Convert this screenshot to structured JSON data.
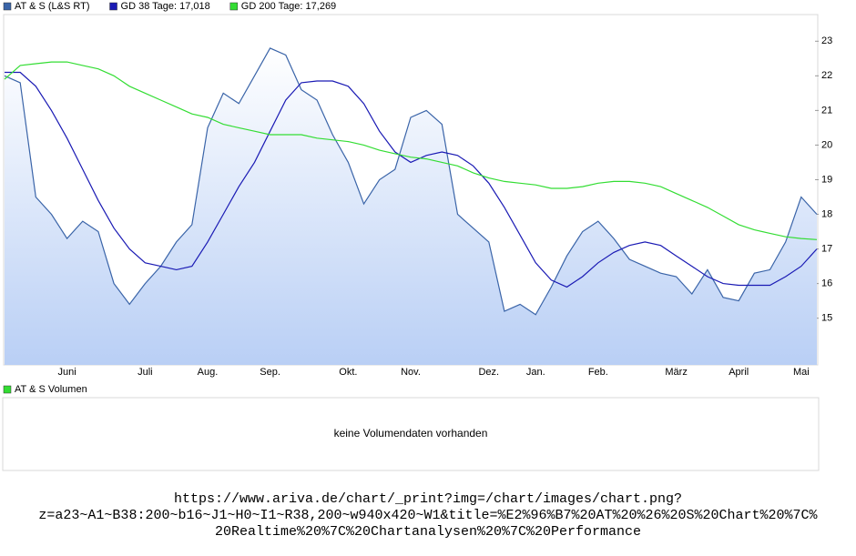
{
  "chart_data": {
    "type": "line",
    "categories": [
      null,
      null,
      null,
      null,
      "Juni",
      null,
      null,
      null,
      null,
      "Juli",
      null,
      null,
      null,
      "Aug.",
      null,
      null,
      null,
      "Sep.",
      null,
      null,
      null,
      null,
      "Okt.",
      null,
      null,
      null,
      "Nov.",
      null,
      null,
      null,
      null,
      "Dez.",
      null,
      null,
      "Jan.",
      null,
      null,
      null,
      "Feb.",
      null,
      null,
      null,
      null,
      "März",
      null,
      null,
      null,
      "April",
      null,
      null,
      null,
      "Mai",
      null
    ],
    "series": [
      {
        "name": "AT & S (L&S RT)",
        "color": "#3a64a8",
        "area": true,
        "values": [
          22.0,
          21.8,
          18.5,
          18.0,
          17.3,
          17.8,
          17.5,
          16.0,
          15.4,
          16.0,
          16.5,
          17.2,
          17.7,
          20.5,
          21.5,
          21.2,
          22.0,
          22.8,
          22.6,
          21.6,
          21.3,
          20.3,
          19.5,
          18.3,
          19.0,
          19.3,
          20.8,
          21.0,
          20.6,
          18.0,
          17.6,
          17.2,
          15.2,
          15.4,
          15.1,
          15.9,
          16.8,
          17.5,
          17.8,
          17.3,
          16.7,
          16.5,
          16.3,
          16.2,
          15.7,
          16.4,
          15.6,
          15.5,
          16.3,
          16.4,
          17.2,
          18.5,
          18.0
        ]
      },
      {
        "name": "GD 38 Tage: 17,018",
        "color": "#1a1ab4",
        "values": [
          22.1,
          22.1,
          21.7,
          21.0,
          20.2,
          19.3,
          18.4,
          17.6,
          17.0,
          16.6,
          16.5,
          16.4,
          16.5,
          17.2,
          18.0,
          18.8,
          19.5,
          20.4,
          21.3,
          21.8,
          21.85,
          21.85,
          21.7,
          21.2,
          20.4,
          19.8,
          19.5,
          19.7,
          19.8,
          19.7,
          19.4,
          18.9,
          18.2,
          17.4,
          16.6,
          16.1,
          15.9,
          16.2,
          16.6,
          16.9,
          17.1,
          17.2,
          17.1,
          16.8,
          16.5,
          16.2,
          16.0,
          15.95,
          15.95,
          15.95,
          16.2,
          16.5,
          17.0
        ]
      },
      {
        "name": "GD 200 Tage: 17,269",
        "color": "#33dd33",
        "values": [
          21.9,
          22.3,
          22.35,
          22.4,
          22.4,
          22.3,
          22.2,
          22.0,
          21.7,
          21.5,
          21.3,
          21.1,
          20.9,
          20.8,
          20.6,
          20.5,
          20.4,
          20.3,
          20.3,
          20.3,
          20.2,
          20.15,
          20.1,
          20.0,
          19.85,
          19.75,
          19.65,
          19.6,
          19.5,
          19.4,
          19.2,
          19.05,
          18.95,
          18.9,
          18.85,
          18.75,
          18.75,
          18.8,
          18.9,
          18.95,
          18.95,
          18.9,
          18.8,
          18.6,
          18.4,
          18.2,
          17.95,
          17.7,
          17.55,
          17.45,
          17.35,
          17.3,
          17.27
        ]
      }
    ],
    "ylim": [
      13.65,
      23.77
    ],
    "yticks": [
      15,
      16,
      17,
      18,
      19,
      20,
      21,
      22,
      23
    ]
  },
  "volume_panel": {
    "legend": "AT & S Volumen",
    "legend_color": "#33dd33",
    "message": "keine Volumendaten vorhanden"
  },
  "url_lines": [
    "https://www.ariva.de/chart/_print?img=/chart/images/chart.png?",
    "z=a23~A1~B38:200~b16~J1~H0~I1~R38,200~w940x420~W1&title=%E2%96%B7%20AT%20%26%20S%20Chart%20%7C%",
    "20Realtime%20%7C%20Chartanalysen%20%7C%20Performance"
  ]
}
